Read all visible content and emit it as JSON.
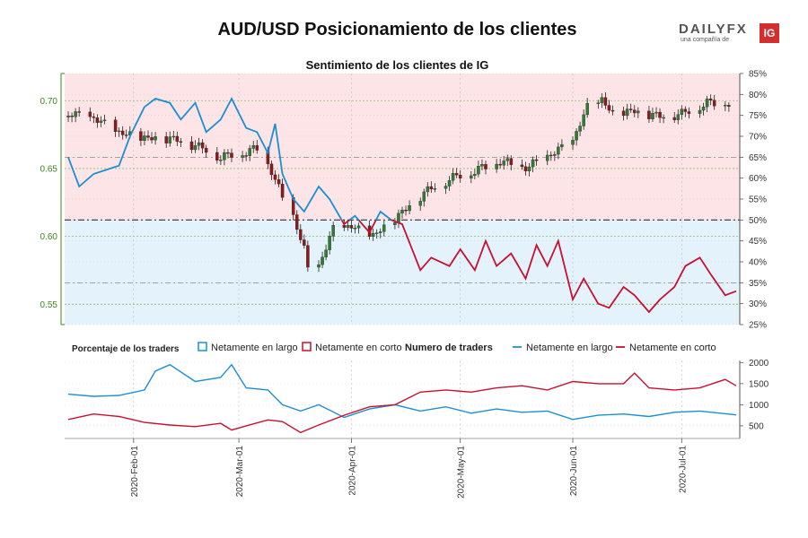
{
  "header": {
    "title": "AUD/USD Posicionamiento de los clientes",
    "brand": "DAILYFX",
    "brand_tagline": "una compañía de",
    "brand_badge": "IG"
  },
  "chart_data": [
    {
      "type": "candlestick+line",
      "title": "Sentimiento de los clientes de IG",
      "x_ticks": [
        "2020-Feb-01",
        "2020-Mar-01",
        "2020-Apr-01",
        "2020-May-01",
        "2020-Jun-01",
        "2020-Jul-01"
      ],
      "y_left": {
        "ticks": [
          "0.70",
          "0.65",
          "0.60",
          "0.55"
        ],
        "ylim": [
          0.535,
          0.72
        ]
      },
      "y_right": {
        "ticks": [
          "85%",
          "80%",
          "75%",
          "70%",
          "65%",
          "60%",
          "55%",
          "50%",
          "45%",
          "40%",
          "35%",
          "30%",
          "25%"
        ],
        "ylim": [
          25,
          85
        ]
      },
      "price_anchors": [
        [
          "2020-01-14",
          0.69
        ],
        [
          "2020-01-21",
          0.687
        ],
        [
          "2020-01-28",
          0.676
        ],
        [
          "2020-02-04",
          0.672
        ],
        [
          "2020-02-11",
          0.672
        ],
        [
          "2020-02-18",
          0.667
        ],
        [
          "2020-02-25",
          0.658
        ],
        [
          "2020-03-03",
          0.662
        ],
        [
          "2020-03-07",
          0.665
        ],
        [
          "2020-03-10",
          0.648
        ],
        [
          "2020-03-13",
          0.628
        ],
        [
          "2020-03-16",
          0.615
        ],
        [
          "2020-03-19",
          0.59
        ],
        [
          "2020-03-20",
          0.575
        ],
        [
          "2020-03-23",
          0.578
        ],
        [
          "2020-03-27",
          0.605
        ],
        [
          "2020-04-01",
          0.607
        ],
        [
          "2020-04-07",
          0.6
        ],
        [
          "2020-04-14",
          0.615
        ],
        [
          "2020-04-21",
          0.632
        ],
        [
          "2020-04-28",
          0.642
        ],
        [
          "2020-05-05",
          0.648
        ],
        [
          "2020-05-12",
          0.655
        ],
        [
          "2020-05-19",
          0.65
        ],
        [
          "2020-05-26",
          0.66
        ],
        [
          "2020-06-01",
          0.67
        ],
        [
          "2020-06-05",
          0.695
        ],
        [
          "2020-06-09",
          0.7
        ],
        [
          "2020-06-12",
          0.69
        ],
        [
          "2020-06-18",
          0.692
        ],
        [
          "2020-06-25",
          0.688
        ],
        [
          "2020-07-01",
          0.69
        ],
        [
          "2020-07-08",
          0.698
        ]
      ],
      "net_long_pct_anchors": [
        [
          "2020-01-14",
          65
        ],
        [
          "2020-01-17",
          58
        ],
        [
          "2020-01-21",
          61
        ],
        [
          "2020-01-28",
          63
        ],
        [
          "2020-01-31",
          70
        ],
        [
          "2020-02-04",
          77
        ],
        [
          "2020-02-07",
          79
        ],
        [
          "2020-02-11",
          78
        ],
        [
          "2020-02-14",
          74
        ],
        [
          "2020-02-18",
          78
        ],
        [
          "2020-02-21",
          71
        ],
        [
          "2020-02-25",
          74
        ],
        [
          "2020-02-28",
          79
        ],
        [
          "2020-03-03",
          72
        ],
        [
          "2020-03-06",
          71
        ],
        [
          "2020-03-09",
          66
        ],
        [
          "2020-03-11",
          73
        ],
        [
          "2020-03-13",
          61
        ],
        [
          "2020-03-16",
          55
        ],
        [
          "2020-03-19",
          52
        ],
        [
          "2020-03-23",
          58
        ],
        [
          "2020-03-26",
          55
        ],
        [
          "2020-03-30",
          49
        ],
        [
          "2020-04-02",
          51
        ],
        [
          "2020-04-06",
          47
        ],
        [
          "2020-04-09",
          52
        ],
        [
          "2020-04-12",
          50
        ],
        [
          "2020-04-15",
          49
        ],
        [
          "2020-04-20",
          38
        ],
        [
          "2020-04-23",
          41
        ],
        [
          "2020-04-28",
          39
        ],
        [
          "2020-05-01",
          43
        ],
        [
          "2020-05-05",
          38
        ],
        [
          "2020-05-08",
          45
        ],
        [
          "2020-05-11",
          39
        ],
        [
          "2020-05-15",
          42
        ],
        [
          "2020-05-19",
          36
        ],
        [
          "2020-05-22",
          44
        ],
        [
          "2020-05-25",
          39
        ],
        [
          "2020-05-28",
          45
        ],
        [
          "2020-06-01",
          31
        ],
        [
          "2020-06-04",
          36
        ],
        [
          "2020-06-08",
          30
        ],
        [
          "2020-06-11",
          29
        ],
        [
          "2020-06-15",
          34
        ],
        [
          "2020-06-18",
          32
        ],
        [
          "2020-06-22",
          28
        ],
        [
          "2020-06-25",
          31
        ],
        [
          "2020-06-29",
          34
        ],
        [
          "2020-07-02",
          39
        ],
        [
          "2020-07-06",
          41
        ],
        [
          "2020-07-09",
          37
        ],
        [
          "2020-07-13",
          32
        ],
        [
          "2020-07-16",
          33
        ]
      ],
      "reference_lines_pct": [
        50,
        65,
        35
      ],
      "price_gridlines": [
        0.7,
        0.65,
        0.6,
        0.55
      ]
    },
    {
      "type": "line",
      "legend_title_left": "Porcentaje de los traders",
      "legend_title_right": "Numero de traders",
      "series": [
        {
          "name": "Netamente en largo",
          "color": "#1a8fd6"
        },
        {
          "name": "Netamente en corto",
          "color": "#c8102e"
        }
      ],
      "y_ticks": [
        "2000",
        "1500",
        "1000",
        "500"
      ],
      "ylim": [
        200,
        2050
      ],
      "net_long_count_anchors": [
        [
          "2020-01-14",
          1250
        ],
        [
          "2020-01-21",
          1200
        ],
        [
          "2020-01-28",
          1220
        ],
        [
          "2020-02-04",
          1350
        ],
        [
          "2020-02-07",
          1800
        ],
        [
          "2020-02-11",
          1950
        ],
        [
          "2020-02-18",
          1550
        ],
        [
          "2020-02-25",
          1650
        ],
        [
          "2020-02-28",
          1950
        ],
        [
          "2020-03-03",
          1400
        ],
        [
          "2020-03-09",
          1350
        ],
        [
          "2020-03-13",
          1000
        ],
        [
          "2020-03-18",
          850
        ],
        [
          "2020-03-23",
          1000
        ],
        [
          "2020-03-30",
          700
        ],
        [
          "2020-04-06",
          900
        ],
        [
          "2020-04-13",
          1000
        ],
        [
          "2020-04-20",
          850
        ],
        [
          "2020-04-27",
          950
        ],
        [
          "2020-05-04",
          800
        ],
        [
          "2020-05-11",
          900
        ],
        [
          "2020-05-18",
          820
        ],
        [
          "2020-05-25",
          850
        ],
        [
          "2020-06-01",
          650
        ],
        [
          "2020-06-08",
          750
        ],
        [
          "2020-06-15",
          780
        ],
        [
          "2020-06-22",
          720
        ],
        [
          "2020-06-29",
          820
        ],
        [
          "2020-07-06",
          850
        ],
        [
          "2020-07-16",
          760
        ]
      ],
      "net_short_count_anchors": [
        [
          "2020-01-14",
          650
        ],
        [
          "2020-01-21",
          780
        ],
        [
          "2020-01-28",
          720
        ],
        [
          "2020-02-04",
          580
        ],
        [
          "2020-02-11",
          520
        ],
        [
          "2020-02-18",
          480
        ],
        [
          "2020-02-25",
          560
        ],
        [
          "2020-02-28",
          400
        ],
        [
          "2020-03-03",
          500
        ],
        [
          "2020-03-09",
          640
        ],
        [
          "2020-03-13",
          600
        ],
        [
          "2020-03-18",
          340
        ],
        [
          "2020-03-23",
          520
        ],
        [
          "2020-03-30",
          750
        ],
        [
          "2020-04-06",
          950
        ],
        [
          "2020-04-13",
          1000
        ],
        [
          "2020-04-20",
          1300
        ],
        [
          "2020-04-27",
          1350
        ],
        [
          "2020-05-04",
          1300
        ],
        [
          "2020-05-11",
          1400
        ],
        [
          "2020-05-18",
          1450
        ],
        [
          "2020-05-25",
          1350
        ],
        [
          "2020-06-01",
          1550
        ],
        [
          "2020-06-08",
          1500
        ],
        [
          "2020-06-15",
          1500
        ],
        [
          "2020-06-18",
          1750
        ],
        [
          "2020-06-22",
          1400
        ],
        [
          "2020-06-29",
          1350
        ],
        [
          "2020-07-06",
          1400
        ],
        [
          "2020-07-13",
          1600
        ],
        [
          "2020-07-16",
          1450
        ]
      ]
    }
  ]
}
